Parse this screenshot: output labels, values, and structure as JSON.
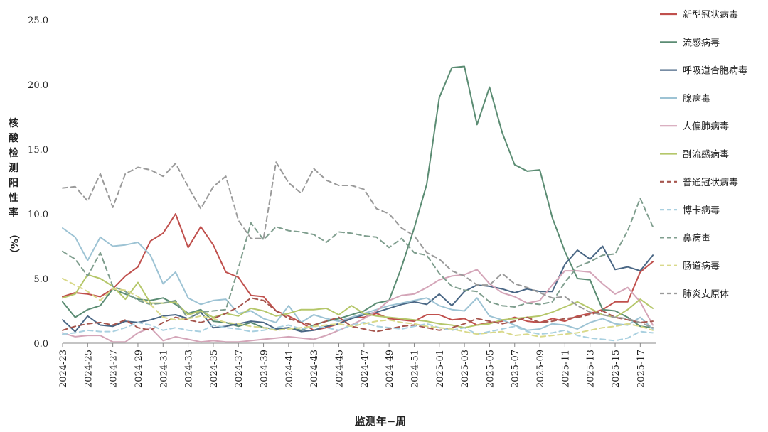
{
  "chart_data": {
    "type": "line",
    "xlabel": "监测年−周",
    "ylabel_chars": [
      "核",
      "酸",
      "检",
      "测",
      "阳",
      "性",
      "率"
    ],
    "ylabel_unit": "（%）",
    "ylim": [
      0,
      25
    ],
    "yticks": [
      "0.0",
      "5.0",
      "10.0",
      "15.0",
      "20.0",
      "25.0"
    ],
    "x_tick_labels": [
      "2024-23",
      "2024-25",
      "2024-27",
      "2024-29",
      "2024-31",
      "2024-33",
      "2024-35",
      "2024-37",
      "2024-39",
      "2024-41",
      "2024-43",
      "2024-45",
      "2024-47",
      "2024-49",
      "2024-51",
      "2025-01",
      "2025-03",
      "2025-05",
      "2025-07",
      "2025-09",
      "2025-11",
      "2025-13",
      "2025-15",
      "2025-17"
    ],
    "n_points": 48,
    "grid": false,
    "legend_position": "right",
    "series": [
      {
        "name": "新型冠状病毒",
        "color": "#c0504d",
        "dash": false,
        "values": [
          3.6,
          3.9,
          3.8,
          3.6,
          4.2,
          5.2,
          5.9,
          7.9,
          8.5,
          10.0,
          7.4,
          9.0,
          7.6,
          5.5,
          5.1,
          3.7,
          3.6,
          2.5,
          2.1,
          1.6,
          1.0,
          1.2,
          1.5,
          2.0,
          2.0,
          2.3,
          1.9,
          1.8,
          1.7,
          2.2,
          2.2,
          1.8,
          1.9,
          1.4,
          1.6,
          1.7,
          2.0,
          1.7,
          1.6,
          1.9,
          1.7,
          2.1,
          2.3,
          2.6,
          3.2,
          3.2,
          5.5,
          6.3
        ]
      },
      {
        "name": "流感病毒",
        "color": "#5b8c73",
        "dash": false,
        "values": [
          3.2,
          2.0,
          2.6,
          2.9,
          4.2,
          3.8,
          3.4,
          3.3,
          3.5,
          3.0,
          2.3,
          2.6,
          1.7,
          1.6,
          1.3,
          1.6,
          1.2,
          1.1,
          1.2,
          1.0,
          1.4,
          1.7,
          1.9,
          2.2,
          2.5,
          3.1,
          3.3,
          5.9,
          8.9,
          12.3,
          19.0,
          21.3,
          21.4,
          16.9,
          19.8,
          16.3,
          13.8,
          13.3,
          13.4,
          9.7,
          7.1,
          5.0,
          4.9,
          2.6,
          2.5,
          2.0,
          1.3,
          1.2
        ]
      },
      {
        "name": "呼吸道合胞病毒",
        "color": "#4a6785",
        "dash": false,
        "values": [
          1.8,
          0.9,
          2.1,
          1.4,
          1.3,
          1.7,
          1.6,
          1.8,
          2.1,
          2.2,
          1.9,
          2.4,
          1.2,
          1.3,
          1.5,
          1.7,
          1.6,
          1.1,
          1.2,
          0.9,
          1.0,
          1.3,
          1.5,
          1.9,
          2.2,
          2.4,
          2.7,
          3.0,
          3.2,
          3.0,
          3.8,
          2.9,
          4.0,
          4.5,
          4.4,
          4.2,
          3.9,
          4.2,
          4.0,
          4.0,
          6.1,
          7.2,
          6.5,
          7.5,
          5.7,
          5.9,
          5.6,
          6.8
        ]
      },
      {
        "name": "腺病毒",
        "color": "#9dc3d4",
        "dash": false,
        "values": [
          8.9,
          8.2,
          6.4,
          8.2,
          7.5,
          7.6,
          7.8,
          6.8,
          4.6,
          5.5,
          3.5,
          3.0,
          3.3,
          3.4,
          2.3,
          2.5,
          1.9,
          1.6,
          2.9,
          1.6,
          2.2,
          1.9,
          1.7,
          2.0,
          2.3,
          2.6,
          2.9,
          3.1,
          3.3,
          3.5,
          2.9,
          2.6,
          2.5,
          3.5,
          2.1,
          1.8,
          1.4,
          1.0,
          1.1,
          1.5,
          1.4,
          1.1,
          1.6,
          1.9,
          1.5,
          1.4,
          2.0,
          1.1
        ]
      },
      {
        "name": "人偏肺病毒",
        "color": "#d4a5b8",
        "dash": false,
        "values": [
          0.8,
          0.5,
          0.6,
          0.6,
          0.1,
          0.1,
          0.8,
          1.2,
          0.2,
          0.5,
          0.3,
          0.1,
          0.2,
          0.1,
          0.1,
          0.2,
          0.3,
          0.4,
          0.5,
          0.4,
          0.3,
          0.6,
          1.0,
          1.4,
          1.9,
          2.5,
          3.3,
          3.7,
          3.8,
          4.3,
          4.9,
          5.2,
          5.3,
          5.7,
          4.6,
          3.9,
          3.6,
          3.1,
          3.3,
          4.5,
          5.6,
          5.6,
          5.5,
          4.6,
          3.8,
          4.3,
          3.2,
          1.4
        ]
      },
      {
        "name": "副流感病毒",
        "color": "#b5c76a",
        "dash": false,
        "values": [
          3.5,
          3.8,
          5.3,
          5.0,
          4.4,
          3.4,
          4.7,
          3.1,
          3.1,
          3.2,
          2.2,
          2.5,
          2.0,
          2.3,
          2.1,
          2.7,
          2.5,
          2.1,
          2.3,
          2.6,
          2.6,
          2.7,
          2.2,
          2.9,
          2.3,
          2.1,
          2.0,
          1.9,
          1.8,
          1.7,
          1.5,
          1.4,
          1.2,
          1.4,
          1.5,
          1.8,
          1.9,
          2.0,
          2.1,
          2.4,
          2.8,
          3.2,
          2.7,
          2.2,
          2.0,
          2.6,
          3.4,
          2.7
        ]
      },
      {
        "name": "普通冠状病毒",
        "color": "#a6564e",
        "dash": true,
        "values": [
          1.0,
          1.3,
          1.5,
          1.6,
          1.4,
          1.8,
          1.2,
          1.0,
          1.6,
          2.0,
          1.8,
          1.6,
          1.9,
          2.3,
          2.8,
          3.5,
          3.3,
          2.5,
          1.9,
          1.6,
          1.4,
          1.7,
          2.0,
          1.3,
          1.1,
          0.9,
          1.1,
          1.3,
          1.4,
          1.2,
          1.0,
          1.2,
          1.5,
          1.9,
          1.7,
          1.5,
          1.7,
          2.0,
          1.6,
          1.7,
          1.9,
          2.0,
          2.2,
          2.5,
          2.0,
          1.8,
          1.6,
          1.7
        ]
      },
      {
        "name": "博卡病毒",
        "color": "#a9d0e0",
        "dash": true,
        "values": [
          0.7,
          0.8,
          1.0,
          0.9,
          0.9,
          1.2,
          1.6,
          1.4,
          1.0,
          1.2,
          1.0,
          0.9,
          1.4,
          1.2,
          1.1,
          0.9,
          1.0,
          1.2,
          1.4,
          1.1,
          1.3,
          1.2,
          1.0,
          1.4,
          1.6,
          1.3,
          1.2,
          1.1,
          1.3,
          1.5,
          1.2,
          1.0,
          1.2,
          0.7,
          0.9,
          1.1,
          1.3,
          0.9,
          0.7,
          0.8,
          1.0,
          0.6,
          0.4,
          0.3,
          0.2,
          0.4,
          0.9,
          0.8
        ]
      },
      {
        "name": "鼻病毒",
        "color": "#7f9e8e",
        "dash": true,
        "values": [
          7.1,
          6.5,
          5.2,
          7.0,
          4.4,
          4.0,
          3.3,
          3.0,
          3.1,
          3.3,
          1.9,
          2.4,
          2.5,
          2.6,
          5.8,
          9.3,
          8.0,
          9.0,
          8.7,
          8.6,
          8.4,
          7.8,
          8.6,
          8.5,
          8.3,
          8.2,
          7.4,
          8.1,
          7.0,
          6.8,
          5.4,
          4.4,
          4.1,
          4.0,
          3.2,
          2.9,
          2.8,
          3.1,
          3.0,
          3.2,
          4.7,
          5.9,
          6.3,
          6.8,
          6.9,
          8.7,
          11.2,
          9.0
        ]
      },
      {
        "name": "肠道病毒",
        "color": "#d9d98a",
        "dash": true,
        "values": [
          5.0,
          4.5,
          4.0,
          3.3,
          4.2,
          4.1,
          3.6,
          3.0,
          2.0,
          1.8,
          1.9,
          2.1,
          1.9,
          1.6,
          1.5,
          1.3,
          1.2,
          1.0,
          1.1,
          1.2,
          1.3,
          1.4,
          1.5,
          1.3,
          1.5,
          1.7,
          1.8,
          1.6,
          1.5,
          1.3,
          1.2,
          1.1,
          0.9,
          0.7,
          0.8,
          0.9,
          0.6,
          0.7,
          0.5,
          0.6,
          0.7,
          0.8,
          1.0,
          1.2,
          1.3,
          1.5,
          1.3,
          1.0
        ]
      },
      {
        "name": "肺炎支原体",
        "color": "#9a9a9a",
        "dash": true,
        "values": [
          12.0,
          12.1,
          11.0,
          13.1,
          10.5,
          13.1,
          13.6,
          13.4,
          12.9,
          13.9,
          12.1,
          10.4,
          12.1,
          12.9,
          9.5,
          8.1,
          8.1,
          14.0,
          12.4,
          11.6,
          13.5,
          12.6,
          12.2,
          12.2,
          11.9,
          10.4,
          10.0,
          8.9,
          8.3,
          7.0,
          6.5,
          5.6,
          5.2,
          4.5,
          4.5,
          5.4,
          4.6,
          4.3,
          3.9,
          3.5,
          3.6,
          2.9,
          2.4,
          2.2,
          2.0,
          1.9,
          1.6,
          1.2
        ]
      }
    ]
  }
}
